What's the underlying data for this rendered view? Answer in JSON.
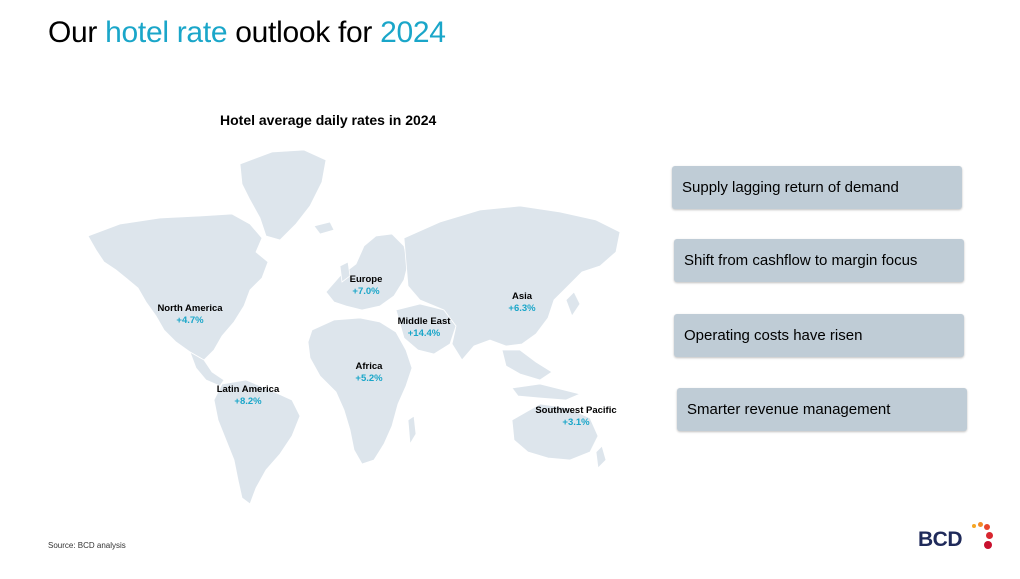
{
  "title": {
    "part1": "Our ",
    "highlight1": "hotel rate",
    "part2": " outlook for ",
    "highlight2": "2024"
  },
  "map": {
    "title": "Hotel average daily rates in 2024",
    "regions": [
      {
        "name": "North America",
        "value": "+4.7%"
      },
      {
        "name": "Latin America",
        "value": "+8.2%"
      },
      {
        "name": "Europe",
        "value": "+7.0%"
      },
      {
        "name": "Middle East",
        "value": "+14.4%"
      },
      {
        "name": "Africa",
        "value": "+5.2%"
      },
      {
        "name": "Asia",
        "value": "+6.3%"
      },
      {
        "name": "Southwest Pacific",
        "value": "+3.1%"
      }
    ]
  },
  "drivers": [
    "Supply lagging return of demand",
    "Shift from cashflow to margin focus",
    "Operating costs have risen",
    "Smarter revenue management"
  ],
  "footer": {
    "source": "Source: BCD analysis",
    "logo_text": "BCD"
  },
  "colors": {
    "accent": "#1aa6c9",
    "card": "#bfccd6",
    "land": "#dde5ec",
    "brand_navy": "#1f2a5a"
  }
}
